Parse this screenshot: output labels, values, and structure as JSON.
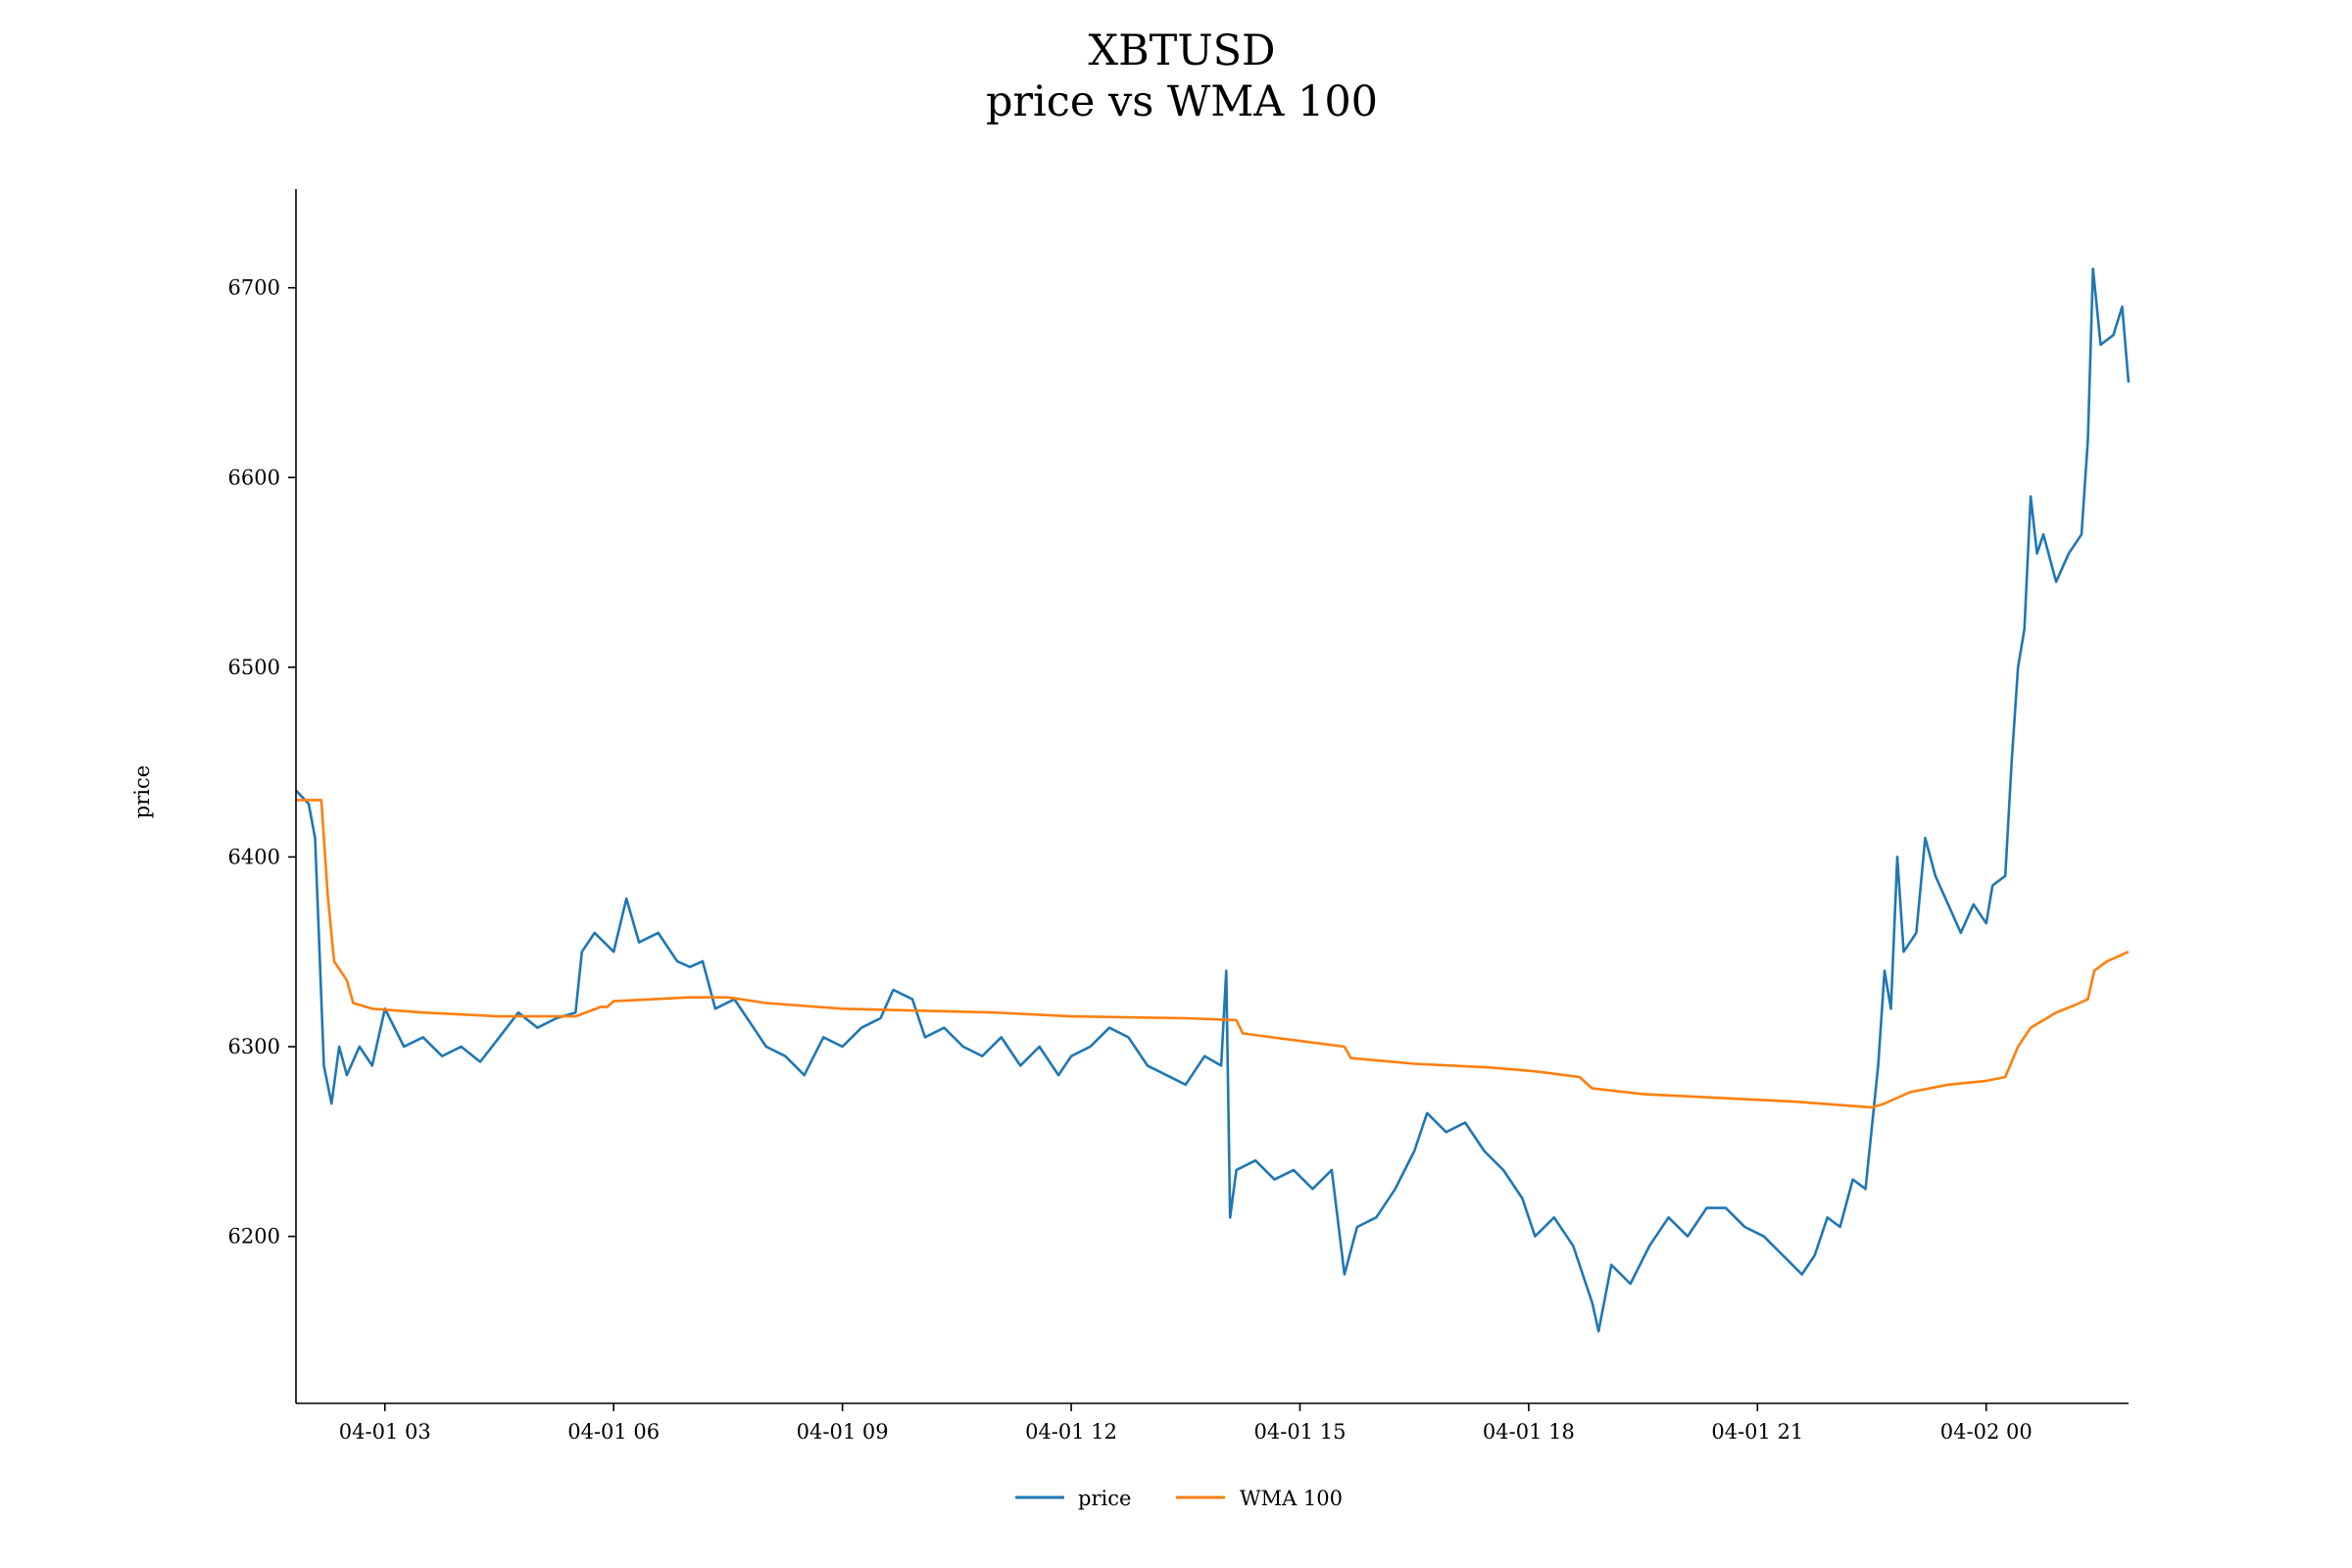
{
  "chart_data": {
    "type": "line",
    "title": "XBTUSD",
    "subtitle": "price vs WMA 100",
    "xlabel": "",
    "ylabel": "price",
    "xlim": [
      "04-01 01:50",
      "04-02 01:52"
    ],
    "ylim": [
      6112,
      6752
    ],
    "x_ticks": [
      {
        "value": "04-01 03:00",
        "label": "04-01 03"
      },
      {
        "value": "04-01 06:00",
        "label": "04-01 06"
      },
      {
        "value": "04-01 09:00",
        "label": "04-01 09"
      },
      {
        "value": "04-01 12:00",
        "label": "04-01 12"
      },
      {
        "value": "04-01 15:00",
        "label": "04-01 15"
      },
      {
        "value": "04-01 18:00",
        "label": "04-01 18"
      },
      {
        "value": "04-01 21:00",
        "label": "04-01 21"
      },
      {
        "value": "04-02 00:00",
        "label": "04-02 00"
      }
    ],
    "y_ticks": [
      6200,
      6300,
      6400,
      6500,
      6600,
      6700
    ],
    "grid": false,
    "legend_position": "bottom-center",
    "series": [
      {
        "name": "price",
        "color": "#1f77b4",
        "points": [
          [
            "04-01 01:50",
            6435
          ],
          [
            "04-01 02:00",
            6428
          ],
          [
            "04-01 02:05",
            6410
          ],
          [
            "04-01 02:08",
            6360
          ],
          [
            "04-01 02:12",
            6290
          ],
          [
            "04-01 02:18",
            6270
          ],
          [
            "04-01 02:24",
            6300
          ],
          [
            "04-01 02:30",
            6285
          ],
          [
            "04-01 02:40",
            6300
          ],
          [
            "04-01 02:50",
            6290
          ],
          [
            "04-01 03:00",
            6320
          ],
          [
            "04-01 03:15",
            6300
          ],
          [
            "04-01 03:30",
            6305
          ],
          [
            "04-01 03:45",
            6295
          ],
          [
            "04-01 04:00",
            6300
          ],
          [
            "04-01 04:15",
            6292
          ],
          [
            "04-01 04:30",
            6305
          ],
          [
            "04-01 04:45",
            6318
          ],
          [
            "04-01 05:00",
            6310
          ],
          [
            "04-01 05:15",
            6315
          ],
          [
            "04-01 05:30",
            6318
          ],
          [
            "04-01 05:35",
            6350
          ],
          [
            "04-01 05:45",
            6360
          ],
          [
            "04-01 06:00",
            6350
          ],
          [
            "04-01 06:10",
            6378
          ],
          [
            "04-01 06:20",
            6355
          ],
          [
            "04-01 06:35",
            6360
          ],
          [
            "04-01 06:50",
            6345
          ],
          [
            "04-01 07:00",
            6342
          ],
          [
            "04-01 07:10",
            6345
          ],
          [
            "04-01 07:20",
            6320
          ],
          [
            "04-01 07:35",
            6325
          ],
          [
            "04-01 07:50",
            6310
          ],
          [
            "04-01 08:00",
            6300
          ],
          [
            "04-01 08:15",
            6295
          ],
          [
            "04-01 08:30",
            6285
          ],
          [
            "04-01 08:45",
            6305
          ],
          [
            "04-01 09:00",
            6300
          ],
          [
            "04-01 09:15",
            6310
          ],
          [
            "04-01 09:30",
            6315
          ],
          [
            "04-01 09:40",
            6330
          ],
          [
            "04-01 09:55",
            6325
          ],
          [
            "04-01 10:05",
            6305
          ],
          [
            "04-01 10:20",
            6310
          ],
          [
            "04-01 10:35",
            6300
          ],
          [
            "04-01 10:50",
            6295
          ],
          [
            "04-01 11:05",
            6305
          ],
          [
            "04-01 11:20",
            6290
          ],
          [
            "04-01 11:35",
            6300
          ],
          [
            "04-01 11:50",
            6285
          ],
          [
            "04-01 12:00",
            6295
          ],
          [
            "04-01 12:15",
            6300
          ],
          [
            "04-01 12:30",
            6310
          ],
          [
            "04-01 12:45",
            6305
          ],
          [
            "04-01 13:00",
            6290
          ],
          [
            "04-01 13:15",
            6285
          ],
          [
            "04-01 13:30",
            6280
          ],
          [
            "04-01 13:45",
            6295
          ],
          [
            "04-01 13:58",
            6290
          ],
          [
            "04-01 14:02",
            6340
          ],
          [
            "04-01 14:05",
            6210
          ],
          [
            "04-01 14:10",
            6235
          ],
          [
            "04-01 14:25",
            6240
          ],
          [
            "04-01 14:40",
            6230
          ],
          [
            "04-01 14:55",
            6235
          ],
          [
            "04-01 15:10",
            6225
          ],
          [
            "04-01 15:25",
            6235
          ],
          [
            "04-01 15:35",
            6180
          ],
          [
            "04-01 15:45",
            6205
          ],
          [
            "04-01 16:00",
            6210
          ],
          [
            "04-01 16:15",
            6225
          ],
          [
            "04-01 16:30",
            6245
          ],
          [
            "04-01 16:40",
            6265
          ],
          [
            "04-01 16:55",
            6255
          ],
          [
            "04-01 17:10",
            6260
          ],
          [
            "04-01 17:25",
            6245
          ],
          [
            "04-01 17:40",
            6235
          ],
          [
            "04-01 17:55",
            6220
          ],
          [
            "04-01 18:05",
            6200
          ],
          [
            "04-01 18:20",
            6210
          ],
          [
            "04-01 18:35",
            6195
          ],
          [
            "04-01 18:50",
            6165
          ],
          [
            "04-01 18:55",
            6150
          ],
          [
            "04-01 19:05",
            6185
          ],
          [
            "04-01 19:20",
            6175
          ],
          [
            "04-01 19:35",
            6195
          ],
          [
            "04-01 19:50",
            6210
          ],
          [
            "04-01 20:05",
            6200
          ],
          [
            "04-01 20:20",
            6215
          ],
          [
            "04-01 20:35",
            6215
          ],
          [
            "04-01 20:50",
            6205
          ],
          [
            "04-01 21:05",
            6200
          ],
          [
            "04-01 21:20",
            6190
          ],
          [
            "04-01 21:35",
            6180
          ],
          [
            "04-01 21:45",
            6190
          ],
          [
            "04-01 21:55",
            6210
          ],
          [
            "04-01 22:05",
            6205
          ],
          [
            "04-01 22:15",
            6230
          ],
          [
            "04-01 22:25",
            6225
          ],
          [
            "04-01 22:35",
            6290
          ],
          [
            "04-01 22:40",
            6340
          ],
          [
            "04-01 22:45",
            6320
          ],
          [
            "04-01 22:50",
            6400
          ],
          [
            "04-01 22:55",
            6350
          ],
          [
            "04-01 23:05",
            6360
          ],
          [
            "04-01 23:12",
            6410
          ],
          [
            "04-01 23:20",
            6390
          ],
          [
            "04-01 23:30",
            6375
          ],
          [
            "04-01 23:40",
            6360
          ],
          [
            "04-01 23:50",
            6375
          ],
          [
            "04-02 00:00",
            6365
          ],
          [
            "04-02 00:05",
            6385
          ],
          [
            "04-02 00:15",
            6390
          ],
          [
            "04-02 00:20",
            6450
          ],
          [
            "04-02 00:25",
            6500
          ],
          [
            "04-02 00:30",
            6520
          ],
          [
            "04-02 00:35",
            6590
          ],
          [
            "04-02 00:40",
            6560
          ],
          [
            "04-02 00:45",
            6570
          ],
          [
            "04-02 00:55",
            6545
          ],
          [
            "04-02 01:05",
            6560
          ],
          [
            "04-02 01:15",
            6570
          ],
          [
            "04-02 01:20",
            6620
          ],
          [
            "04-02 01:24",
            6710
          ],
          [
            "04-02 01:30",
            6670
          ],
          [
            "04-02 01:40",
            6675
          ],
          [
            "04-02 01:47",
            6690
          ],
          [
            "04-02 01:52",
            6650
          ]
        ]
      },
      {
        "name": "WMA 100",
        "color": "#ff7f0e",
        "points": [
          [
            "04-01 01:50",
            6430
          ],
          [
            "04-01 02:10",
            6430
          ],
          [
            "04-01 02:15",
            6380
          ],
          [
            "04-01 02:20",
            6345
          ],
          [
            "04-01 02:30",
            6335
          ],
          [
            "04-01 02:35",
            6323
          ],
          [
            "04-01 02:50",
            6320
          ],
          [
            "04-01 03:30",
            6318
          ],
          [
            "04-01 04:30",
            6316
          ],
          [
            "04-01 05:30",
            6316
          ],
          [
            "04-01 05:50",
            6321
          ],
          [
            "04-01 05:55",
            6321
          ],
          [
            "04-01 06:00",
            6324
          ],
          [
            "04-01 07:00",
            6326
          ],
          [
            "04-01 07:30",
            6326
          ],
          [
            "04-01 08:00",
            6323
          ],
          [
            "04-01 09:00",
            6320
          ],
          [
            "04-01 11:00",
            6318
          ],
          [
            "04-01 12:00",
            6316
          ],
          [
            "04-01 13:30",
            6315
          ],
          [
            "04-01 14:10",
            6314
          ],
          [
            "04-01 14:15",
            6307
          ],
          [
            "04-01 15:00",
            6303
          ],
          [
            "04-01 15:35",
            6300
          ],
          [
            "04-01 15:40",
            6294
          ],
          [
            "04-01 16:30",
            6291
          ],
          [
            "04-01 17:30",
            6289
          ],
          [
            "04-01 18:05",
            6287
          ],
          [
            "04-01 18:40",
            6284
          ],
          [
            "04-01 18:50",
            6278
          ],
          [
            "04-01 19:30",
            6275
          ],
          [
            "04-01 20:30",
            6273
          ],
          [
            "04-01 21:30",
            6271
          ],
          [
            "04-01 22:30",
            6268
          ],
          [
            "04-01 22:40",
            6270
          ],
          [
            "04-01 23:00",
            6276
          ],
          [
            "04-01 23:30",
            6280
          ],
          [
            "04-02 00:00",
            6282
          ],
          [
            "04-02 00:15",
            6284
          ],
          [
            "04-02 00:25",
            6300
          ],
          [
            "04-02 00:35",
            6310
          ],
          [
            "04-02 00:55",
            6318
          ],
          [
            "04-02 01:10",
            6322
          ],
          [
            "04-02 01:20",
            6325
          ],
          [
            "04-02 01:25",
            6340
          ],
          [
            "04-02 01:35",
            6345
          ],
          [
            "04-02 01:52",
            6350
          ]
        ]
      }
    ]
  }
}
